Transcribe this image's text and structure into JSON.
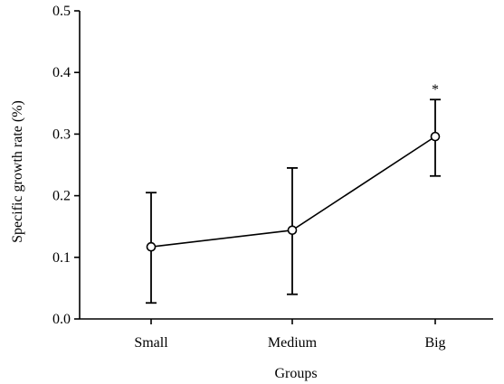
{
  "chart_data": {
    "type": "line",
    "xlabel": "Groups",
    "ylabel": "Specific growth rate (%)",
    "categories": [
      "Small",
      "Medium",
      "Big"
    ],
    "ylim": [
      0.0,
      0.5
    ],
    "yticks": [
      "0.0",
      "0.1",
      "0.2",
      "0.3",
      "0.4",
      "0.5"
    ],
    "grid": false,
    "series": [
      {
        "values": [
          0.117,
          0.144,
          0.296
        ],
        "error_low": [
          0.026,
          0.04,
          0.232
        ],
        "error_high": [
          0.205,
          0.245,
          0.356
        ],
        "marker": "open-circle",
        "color": "#000000"
      }
    ],
    "annotations": [
      {
        "category": "Big",
        "text": "*"
      }
    ]
  }
}
